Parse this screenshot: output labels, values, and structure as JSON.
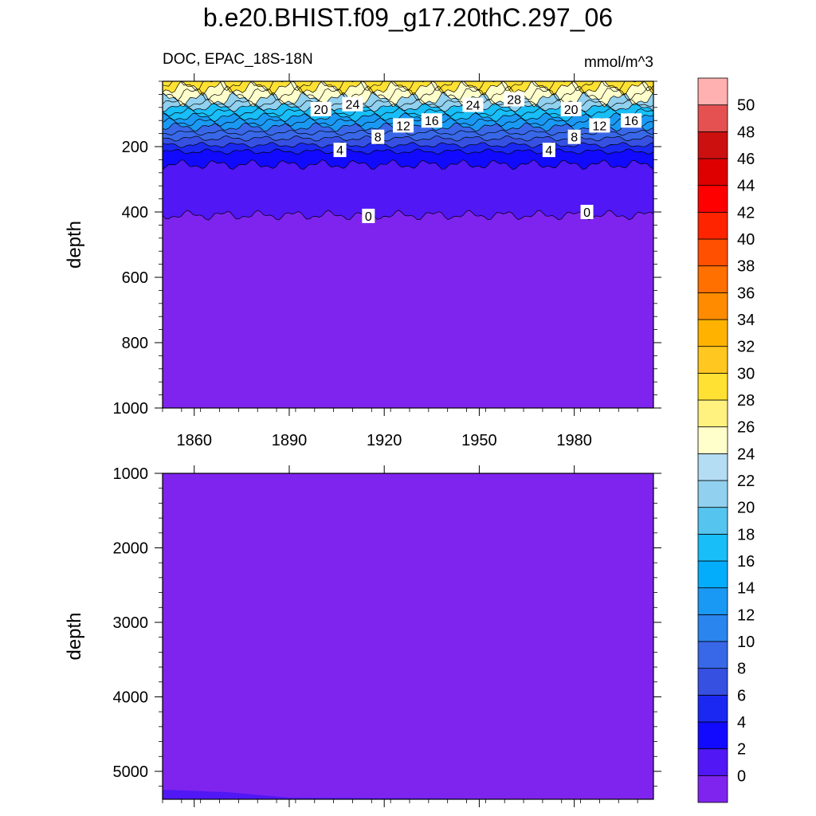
{
  "title": "b.e20.BHIST.f09_g17.20thC.297_06",
  "chart_data": {
    "type": "heatmap",
    "variable_label": "DOC, EPAC_18S-18N",
    "units": "mmol/m^3",
    "xlabel": "",
    "x_ticks": [
      1860,
      1890,
      1920,
      1950,
      1980
    ],
    "xlim": [
      1850,
      2005
    ],
    "panels": [
      {
        "name": "upper",
        "ylabel": "depth",
        "ylim": [
          1000,
          0
        ],
        "y_ticks": [
          200,
          400,
          600,
          800,
          1000
        ],
        "mean_isoline_depths": [
          {
            "value": 28,
            "depth": 20
          },
          {
            "value": 24,
            "depth": 55
          },
          {
            "value": 20,
            "depth": 80
          },
          {
            "value": 16,
            "depth": 110
          },
          {
            "value": 12,
            "depth": 140
          },
          {
            "value": 8,
            "depth": 175
          },
          {
            "value": 6,
            "depth": 195
          },
          {
            "value": 4,
            "depth": 215
          },
          {
            "value": 2,
            "depth": 255
          },
          {
            "value": 0,
            "depth": 410
          }
        ],
        "contour_labels": [
          {
            "text": "20",
            "year": 1900,
            "depth": 85
          },
          {
            "text": "24",
            "year": 1910,
            "depth": 70
          },
          {
            "text": "8",
            "year": 1918,
            "depth": 170
          },
          {
            "text": "12",
            "year": 1926,
            "depth": 135
          },
          {
            "text": "16",
            "year": 1935,
            "depth": 120
          },
          {
            "text": "24",
            "year": 1948,
            "depth": 72
          },
          {
            "text": "28",
            "year": 1961,
            "depth": 55
          },
          {
            "text": "20",
            "year": 1979,
            "depth": 85
          },
          {
            "text": "8",
            "year": 1980,
            "depth": 170
          },
          {
            "text": "12",
            "year": 1988,
            "depth": 135
          },
          {
            "text": "16",
            "year": 1998,
            "depth": 120
          },
          {
            "text": "4",
            "year": 1906,
            "depth": 210
          },
          {
            "text": "4",
            "year": 1972,
            "depth": 210
          },
          {
            "text": "0",
            "year": 1915,
            "depth": 412
          },
          {
            "text": "0",
            "year": 1984,
            "depth": 400
          }
        ]
      },
      {
        "name": "lower",
        "ylabel": "depth",
        "ylim": [
          1000,
          5375
        ],
        "y_ticks": [
          1000,
          2000,
          3000,
          4000,
          5000
        ],
        "note_region": {
          "value": 0,
          "description": "uniform lowest level"
        }
      }
    ],
    "colorbar": {
      "labels": [
        "0",
        "2",
        "4",
        "6",
        "8",
        "10",
        "12",
        "14",
        "16",
        "18",
        "20",
        "22",
        "24",
        "26",
        "28",
        "30",
        "32",
        "34",
        "36",
        "38",
        "40",
        "42",
        "44",
        "46",
        "48",
        "50"
      ],
      "colors": [
        "#7f24ee",
        "#5117f5",
        "#120aff",
        "#1a28f2",
        "#3650e2",
        "#3868e8",
        "#2a85ee",
        "#1a99f4",
        "#04adfb",
        "#18bef8",
        "#55c5f0",
        "#91d0ee",
        "#b4dcf2",
        "#ffffcc",
        "#fff27f",
        "#ffe133",
        "#ffc71f",
        "#ffb300",
        "#ff8c00",
        "#ff7000",
        "#ff4f00",
        "#ff2400",
        "#ff0000",
        "#de0000",
        "#cc1010",
        "#e55151",
        "#ffb0b0"
      ]
    }
  }
}
